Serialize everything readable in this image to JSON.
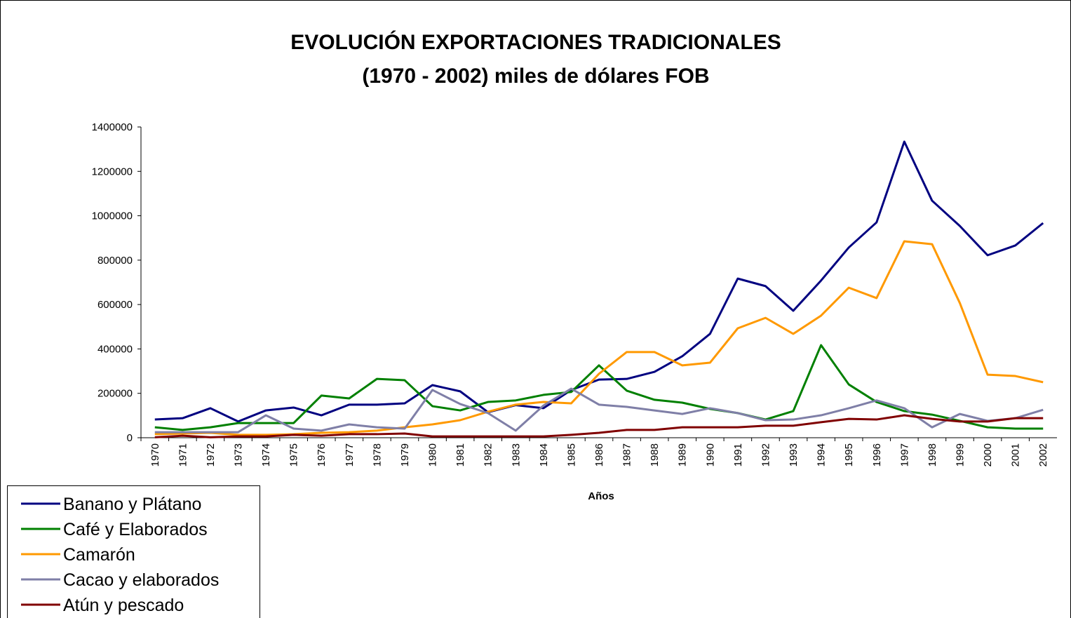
{
  "chart_data": {
    "type": "line",
    "title": "EVOLUCIÓN EXPORTACIONES TRADICIONALES",
    "subtitle": "(1970 - 2002) miles de dólares FOB",
    "x_label": "Años",
    "categories": [
      "1970",
      "1971",
      "1972",
      "1973",
      "1974",
      "1975",
      "1976",
      "1977",
      "1978",
      "1979",
      "1980",
      "1981",
      "1982",
      "1983",
      "1984",
      "1985",
      "1986",
      "1987",
      "1988",
      "1989",
      "1990",
      "1991",
      "1992",
      "1993",
      "1994",
      "1995",
      "1996",
      "1997",
      "1998",
      "1999",
      "2000",
      "2001",
      "2002"
    ],
    "ylim": [
      0,
      1400000
    ],
    "yticks": [
      0,
      200000,
      400000,
      600000,
      800000,
      1000000,
      1200000,
      1400000
    ],
    "grid": false,
    "legend": "bottom-left",
    "series": [
      {
        "name": "Banano y Plátano",
        "color": "#000080",
        "values": [
          82000,
          88000,
          133000,
          73000,
          123000,
          136000,
          101000,
          149000,
          149000,
          155000,
          237000,
          209000,
          115000,
          147000,
          133000,
          215000,
          262000,
          265000,
          297000,
          367000,
          468000,
          717000,
          683000,
          572000,
          708000,
          857000,
          970000,
          1334000,
          1068000,
          954000,
          822000,
          866000,
          967000
        ]
      },
      {
        "name": "Café y Elaborados",
        "color": "#008000",
        "values": [
          47000,
          35000,
          47000,
          66000,
          66000,
          66000,
          190000,
          177000,
          265000,
          259000,
          142000,
          123000,
          161000,
          168000,
          193000,
          206000,
          326000,
          212000,
          171000,
          158000,
          130000,
          111000,
          82000,
          120000,
          417000,
          240000,
          161000,
          120000,
          104000,
          76000,
          47000,
          41000,
          41000
        ]
      },
      {
        "name": "Camarón",
        "color": "#ff9900",
        "values": [
          16000,
          19000,
          22000,
          13000,
          13000,
          16000,
          22000,
          25000,
          32000,
          47000,
          60000,
          79000,
          117000,
          149000,
          161000,
          155000,
          288000,
          386000,
          386000,
          326000,
          338000,
          493000,
          540000,
          468000,
          550000,
          676000,
          629000,
          885000,
          872000,
          607000,
          284000,
          278000,
          250000
        ]
      },
      {
        "name": "Cacao y elaborados",
        "color": "#7f7fa7",
        "values": [
          25000,
          25000,
          25000,
          25000,
          101000,
          41000,
          32000,
          60000,
          47000,
          41000,
          215000,
          152000,
          111000,
          32000,
          145000,
          221000,
          149000,
          139000,
          123000,
          107000,
          133000,
          111000,
          79000,
          82000,
          101000,
          133000,
          168000,
          133000,
          47000,
          107000,
          76000,
          88000,
          126000
        ]
      },
      {
        "name": "Atún y pescado",
        "color": "#800000",
        "values": [
          2000,
          9000,
          2000,
          6000,
          6000,
          13000,
          9000,
          16000,
          16000,
          19000,
          6000,
          6000,
          6000,
          6000,
          6000,
          13000,
          22000,
          35000,
          35000,
          47000,
          47000,
          47000,
          54000,
          54000,
          70000,
          85000,
          82000,
          101000,
          85000,
          73000,
          73000,
          88000,
          88000
        ]
      }
    ]
  }
}
